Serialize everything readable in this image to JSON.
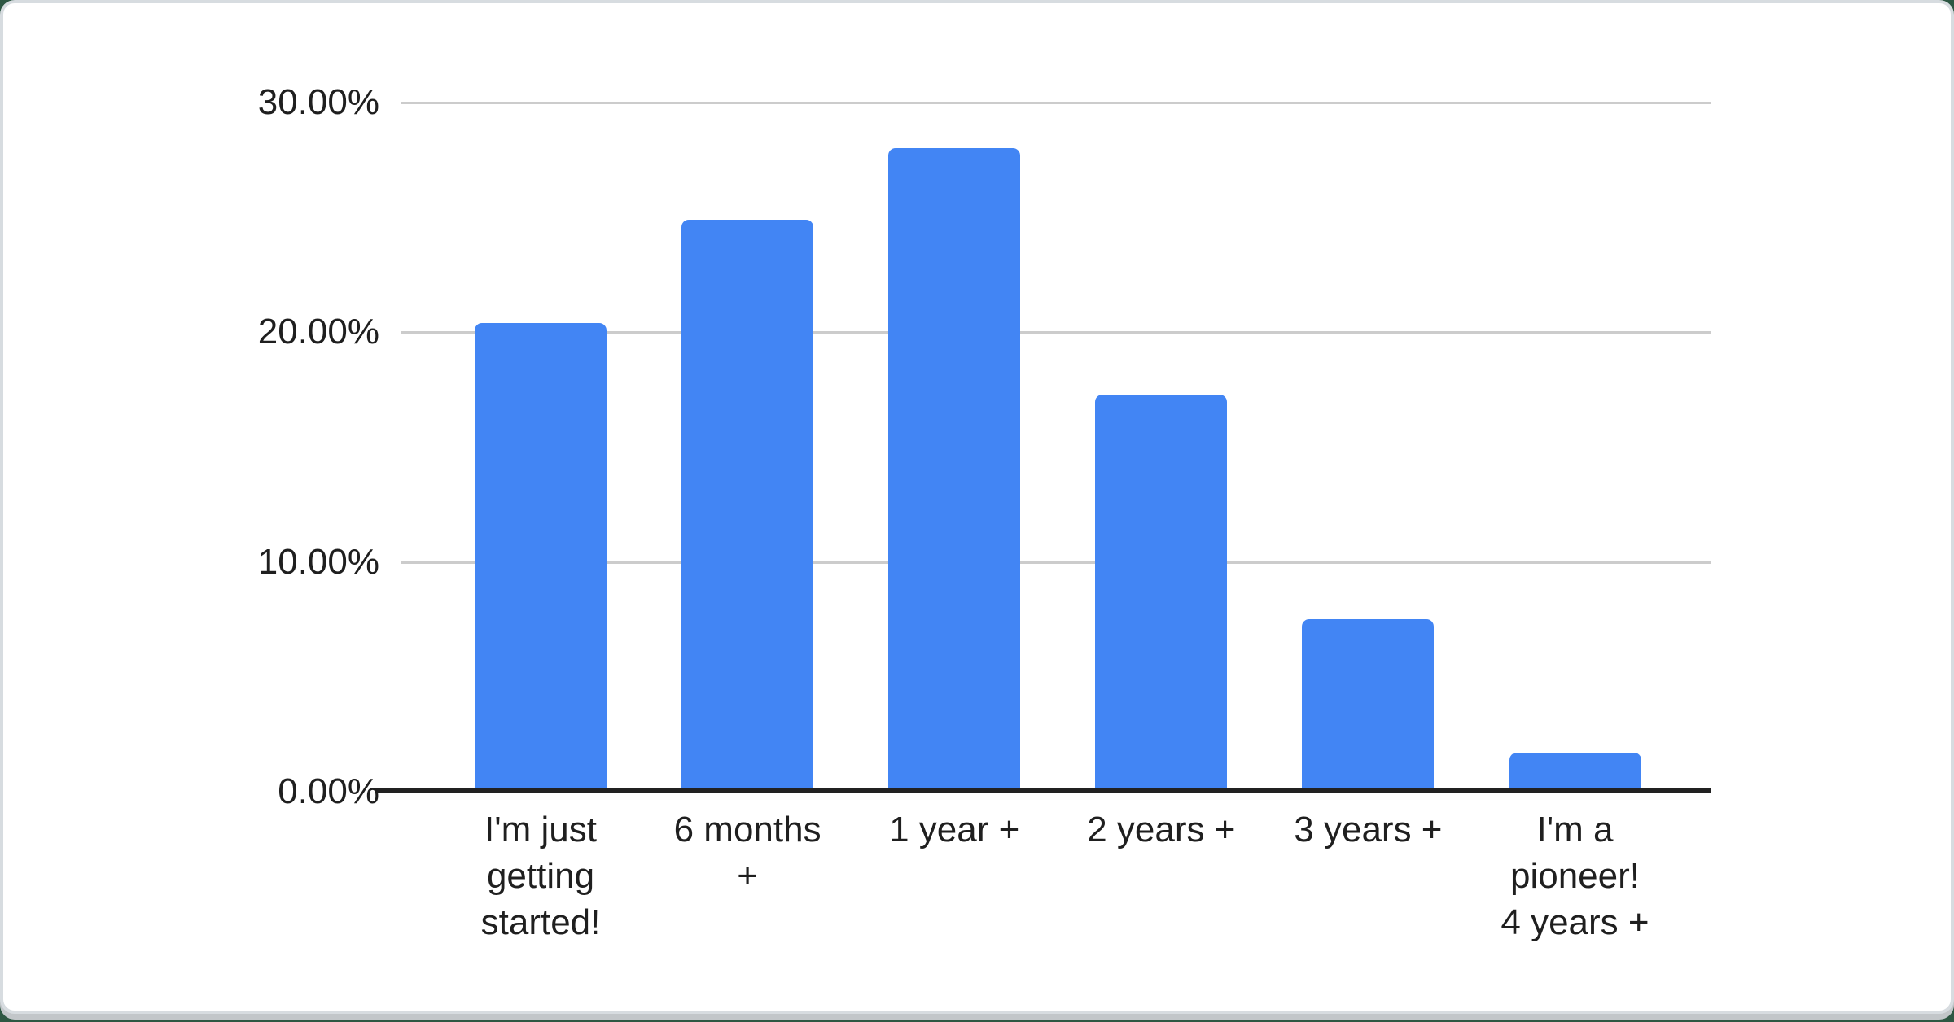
{
  "chart_data": {
    "type": "bar",
    "categories": [
      "I'm just getting started!",
      "6 months +",
      "1 year +",
      "2 years +",
      "3 years +",
      "I'm a pioneer! 4 years +"
    ],
    "category_label_lines": [
      [
        "I'm just",
        "getting",
        "started!"
      ],
      [
        "6 months",
        "+"
      ],
      [
        "1 year +"
      ],
      [
        "2 years +"
      ],
      [
        "3 years +"
      ],
      [
        "I'm a",
        "pioneer!",
        "4 years +"
      ]
    ],
    "values": [
      20.4,
      24.9,
      28.0,
      17.3,
      7.5,
      1.7
    ],
    "value_unit": "percent",
    "y_ticks": [
      {
        "label": "0.00%",
        "value": 0
      },
      {
        "label": "10.00%",
        "value": 10
      },
      {
        "label": "20.00%",
        "value": 20
      },
      {
        "label": "30.00%",
        "value": 30
      }
    ],
    "ylim": [
      0,
      30
    ],
    "grid": true,
    "legend": "none",
    "bar_color": "#4285f4"
  },
  "theme": {
    "page_background": "#2e5743",
    "card_background": "#ffffff",
    "card_border": "#d7dce0",
    "card_shadow": "#c2c6c9",
    "gridline_color": "#cccccc",
    "axis_line_color": "#212121",
    "label_color": "#1f1f1f"
  }
}
